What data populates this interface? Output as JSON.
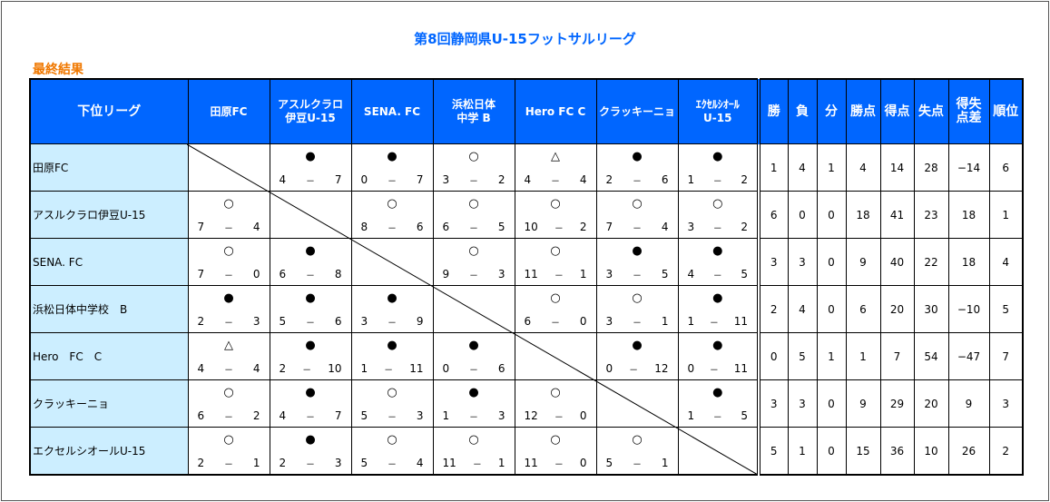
{
  "title": "第8回静岡県U-15フットサルリーグ",
  "subtitle": "最終結果",
  "header": {
    "league": "下位リーグ",
    "teams": [
      "田原FC",
      "アスルクラロ\n伊豆U-15",
      "SENA. FC",
      "浜松日体\n中学 B",
      "Hero FC C",
      "クラッキーニョ",
      "ｴｸｾﾙｼｵｰﾙ\nU-15"
    ],
    "stats": [
      "勝",
      "負",
      "分",
      "勝点",
      "得点",
      "失点",
      "得失\n点差",
      "順位"
    ]
  },
  "rows": [
    {
      "name": "田原FC",
      "results": [
        null,
        [
          "●",
          "4",
          "7"
        ],
        [
          "●",
          "0",
          "7"
        ],
        [
          "○",
          "3",
          "2"
        ],
        [
          "△",
          "4",
          "4"
        ],
        [
          "●",
          "2",
          "6"
        ],
        [
          "●",
          "1",
          "2"
        ]
      ],
      "stats": [
        "1",
        "4",
        "1",
        "4",
        "14",
        "28",
        "−14",
        "6"
      ]
    },
    {
      "name": "アスルクラロ伊豆U-15",
      "results": [
        [
          "○",
          "7",
          "4"
        ],
        null,
        [
          "○",
          "8",
          "6"
        ],
        [
          "○",
          "6",
          "5"
        ],
        [
          "○",
          "10",
          "2"
        ],
        [
          "○",
          "7",
          "4"
        ],
        [
          "○",
          "3",
          "2"
        ]
      ],
      "stats": [
        "6",
        "0",
        "0",
        "18",
        "41",
        "23",
        "18",
        "1"
      ]
    },
    {
      "name": "SENA. FC",
      "results": [
        [
          "○",
          "7",
          "0"
        ],
        [
          "●",
          "6",
          "8"
        ],
        null,
        [
          "○",
          "9",
          "3"
        ],
        [
          "○",
          "11",
          "1"
        ],
        [
          "●",
          "3",
          "5"
        ],
        [
          "●",
          "4",
          "5"
        ]
      ],
      "stats": [
        "3",
        "3",
        "0",
        "9",
        "40",
        "22",
        "18",
        "4"
      ]
    },
    {
      "name": "浜松日体中学校　B",
      "results": [
        [
          "●",
          "2",
          "3"
        ],
        [
          "●",
          "5",
          "6"
        ],
        [
          "●",
          "3",
          "9"
        ],
        null,
        [
          "○",
          "6",
          "0"
        ],
        [
          "○",
          "3",
          "1"
        ],
        [
          "●",
          "1",
          "11"
        ]
      ],
      "stats": [
        "2",
        "4",
        "0",
        "6",
        "20",
        "30",
        "−10",
        "5"
      ]
    },
    {
      "name": "Hero　FC　C",
      "results": [
        [
          "△",
          "4",
          "4"
        ],
        [
          "●",
          "2",
          "10"
        ],
        [
          "●",
          "1",
          "11"
        ],
        [
          "●",
          "0",
          "6"
        ],
        null,
        [
          "●",
          "0",
          "12"
        ],
        [
          "●",
          "0",
          "11"
        ]
      ],
      "stats": [
        "0",
        "5",
        "1",
        "1",
        "7",
        "54",
        "−47",
        "7"
      ]
    },
    {
      "name": "クラッキーニョ",
      "results": [
        [
          "○",
          "6",
          "2"
        ],
        [
          "●",
          "4",
          "7"
        ],
        [
          "○",
          "5",
          "3"
        ],
        [
          "●",
          "1",
          "3"
        ],
        [
          "○",
          "12",
          "0"
        ],
        null,
        [
          "●",
          "1",
          "5"
        ]
      ],
      "stats": [
        "3",
        "3",
        "0",
        "9",
        "29",
        "20",
        "9",
        "3"
      ]
    },
    {
      "name": "エクセルシオールU-15",
      "results": [
        [
          "○",
          "2",
          "1"
        ],
        [
          "●",
          "2",
          "3"
        ],
        [
          "○",
          "5",
          "4"
        ],
        [
          "○",
          "11",
          "1"
        ],
        [
          "○",
          "11",
          "0"
        ],
        [
          "○",
          "5",
          "1"
        ],
        null
      ],
      "stats": [
        "5",
        "1",
        "0",
        "15",
        "36",
        "10",
        "26",
        "2"
      ]
    }
  ],
  "colors": {
    "header_bg": "#0066ff",
    "name_bg": "#cceeff",
    "title": "#0066ff",
    "subtitle": "#f07800"
  }
}
